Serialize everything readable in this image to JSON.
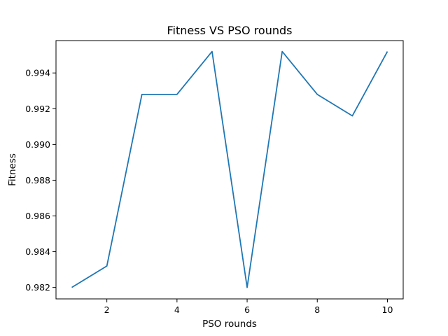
{
  "chart_data": {
    "type": "line",
    "title": "Fitness VS PSO rounds",
    "xlabel": "PSO rounds",
    "ylabel": "Fitness",
    "xlim": [
      0.55,
      10.45
    ],
    "ylim": [
      0.98136,
      0.99581
    ],
    "xticks": [
      2,
      4,
      6,
      8,
      10
    ],
    "xtick_labels": [
      "2",
      "4",
      "6",
      "8",
      "10"
    ],
    "yticks": [
      0.982,
      0.984,
      0.986,
      0.988,
      0.99,
      0.992,
      0.994
    ],
    "ytick_labels": [
      "0.982",
      "0.984",
      "0.986",
      "0.988",
      "0.990",
      "0.992",
      "0.994"
    ],
    "grid": false,
    "legend": "none",
    "series": [
      {
        "x": [
          1,
          2,
          3,
          4,
          5,
          6,
          7,
          8,
          9,
          10
        ],
        "y": [
          0.982,
          0.9832,
          0.9928,
          0.9928,
          0.9952,
          0.982,
          0.9952,
          0.9928,
          0.9916,
          0.9952
        ],
        "color": "#1f77b4"
      }
    ]
  }
}
